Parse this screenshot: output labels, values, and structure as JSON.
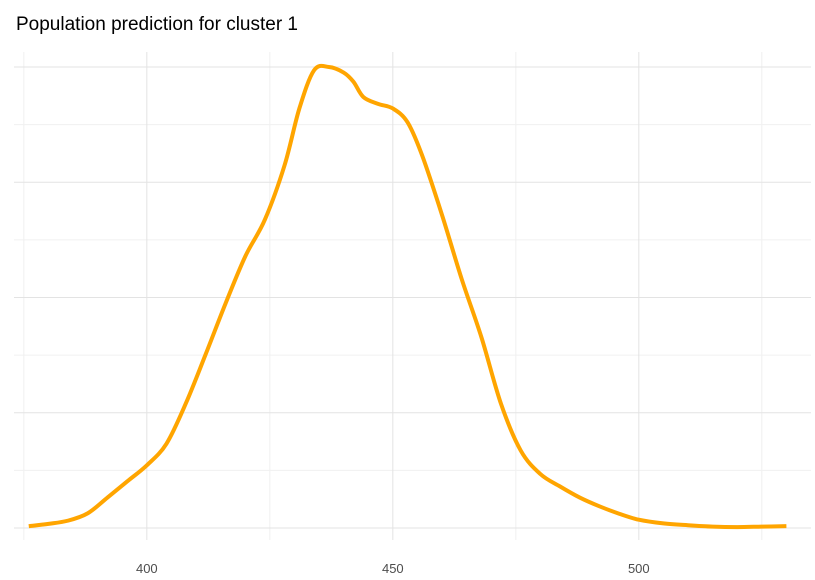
{
  "colors": {
    "line": "#FFA500",
    "grid_major": "#E3E3E3",
    "grid_minor": "#F0F0F0",
    "background": "#FFFFFF"
  },
  "chart_data": {
    "type": "line",
    "title": "Population prediction for cluster 1",
    "xlabel": "",
    "ylabel": "",
    "grid": true,
    "legend": "none",
    "x_ticks": [
      400,
      450,
      500
    ],
    "x_tick_labels": [
      "400",
      "450",
      "500"
    ],
    "xlim": [
      373,
      535
    ],
    "ylim": [
      0,
      1
    ],
    "series": [
      {
        "x": [
          376,
          380,
          384,
          388,
          392,
          396,
          400,
          404,
          408,
          412,
          416,
          420,
          424,
          428,
          431,
          434,
          437,
          440,
          442,
          444,
          447,
          450,
          453,
          456,
          460,
          464,
          468,
          472,
          476,
          480,
          484,
          488,
          492,
          496,
          500,
          505,
          510,
          515,
          520,
          525,
          530
        ],
        "y": [
          0.004,
          0.009,
          0.016,
          0.032,
          0.066,
          0.101,
          0.136,
          0.183,
          0.272,
          0.378,
          0.487,
          0.589,
          0.669,
          0.787,
          0.91,
          0.993,
          1.0,
          0.988,
          0.968,
          0.935,
          0.92,
          0.91,
          0.88,
          0.807,
          0.679,
          0.54,
          0.414,
          0.269,
          0.168,
          0.117,
          0.09,
          0.066,
          0.047,
          0.031,
          0.018,
          0.01,
          0.006,
          0.003,
          0.002,
          0.003,
          0.004
        ]
      }
    ]
  }
}
